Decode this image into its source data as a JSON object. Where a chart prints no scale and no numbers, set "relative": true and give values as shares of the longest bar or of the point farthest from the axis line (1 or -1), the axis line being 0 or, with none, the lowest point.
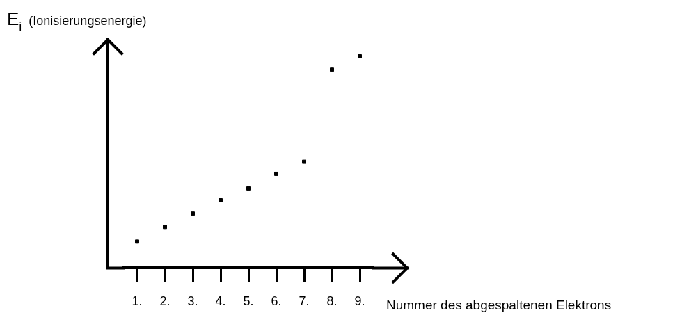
{
  "chart_data": {
    "type": "scatter",
    "categories": [
      "1.",
      "2.",
      "3.",
      "4.",
      "5.",
      "6.",
      "7.",
      "8.",
      "9."
    ],
    "values": [
      0.125,
      0.194,
      0.257,
      0.32,
      0.376,
      0.445,
      0.502,
      0.937,
      1
    ],
    "color": "#000000",
    "relative": true,
    "marker": "square",
    "grid": false,
    "legend": false,
    "xlabel": "Nummer des abgespaltenen Elektrons",
    "ylabel": "E$_{i}$  (Ionisierungsenergie)"
  }
}
